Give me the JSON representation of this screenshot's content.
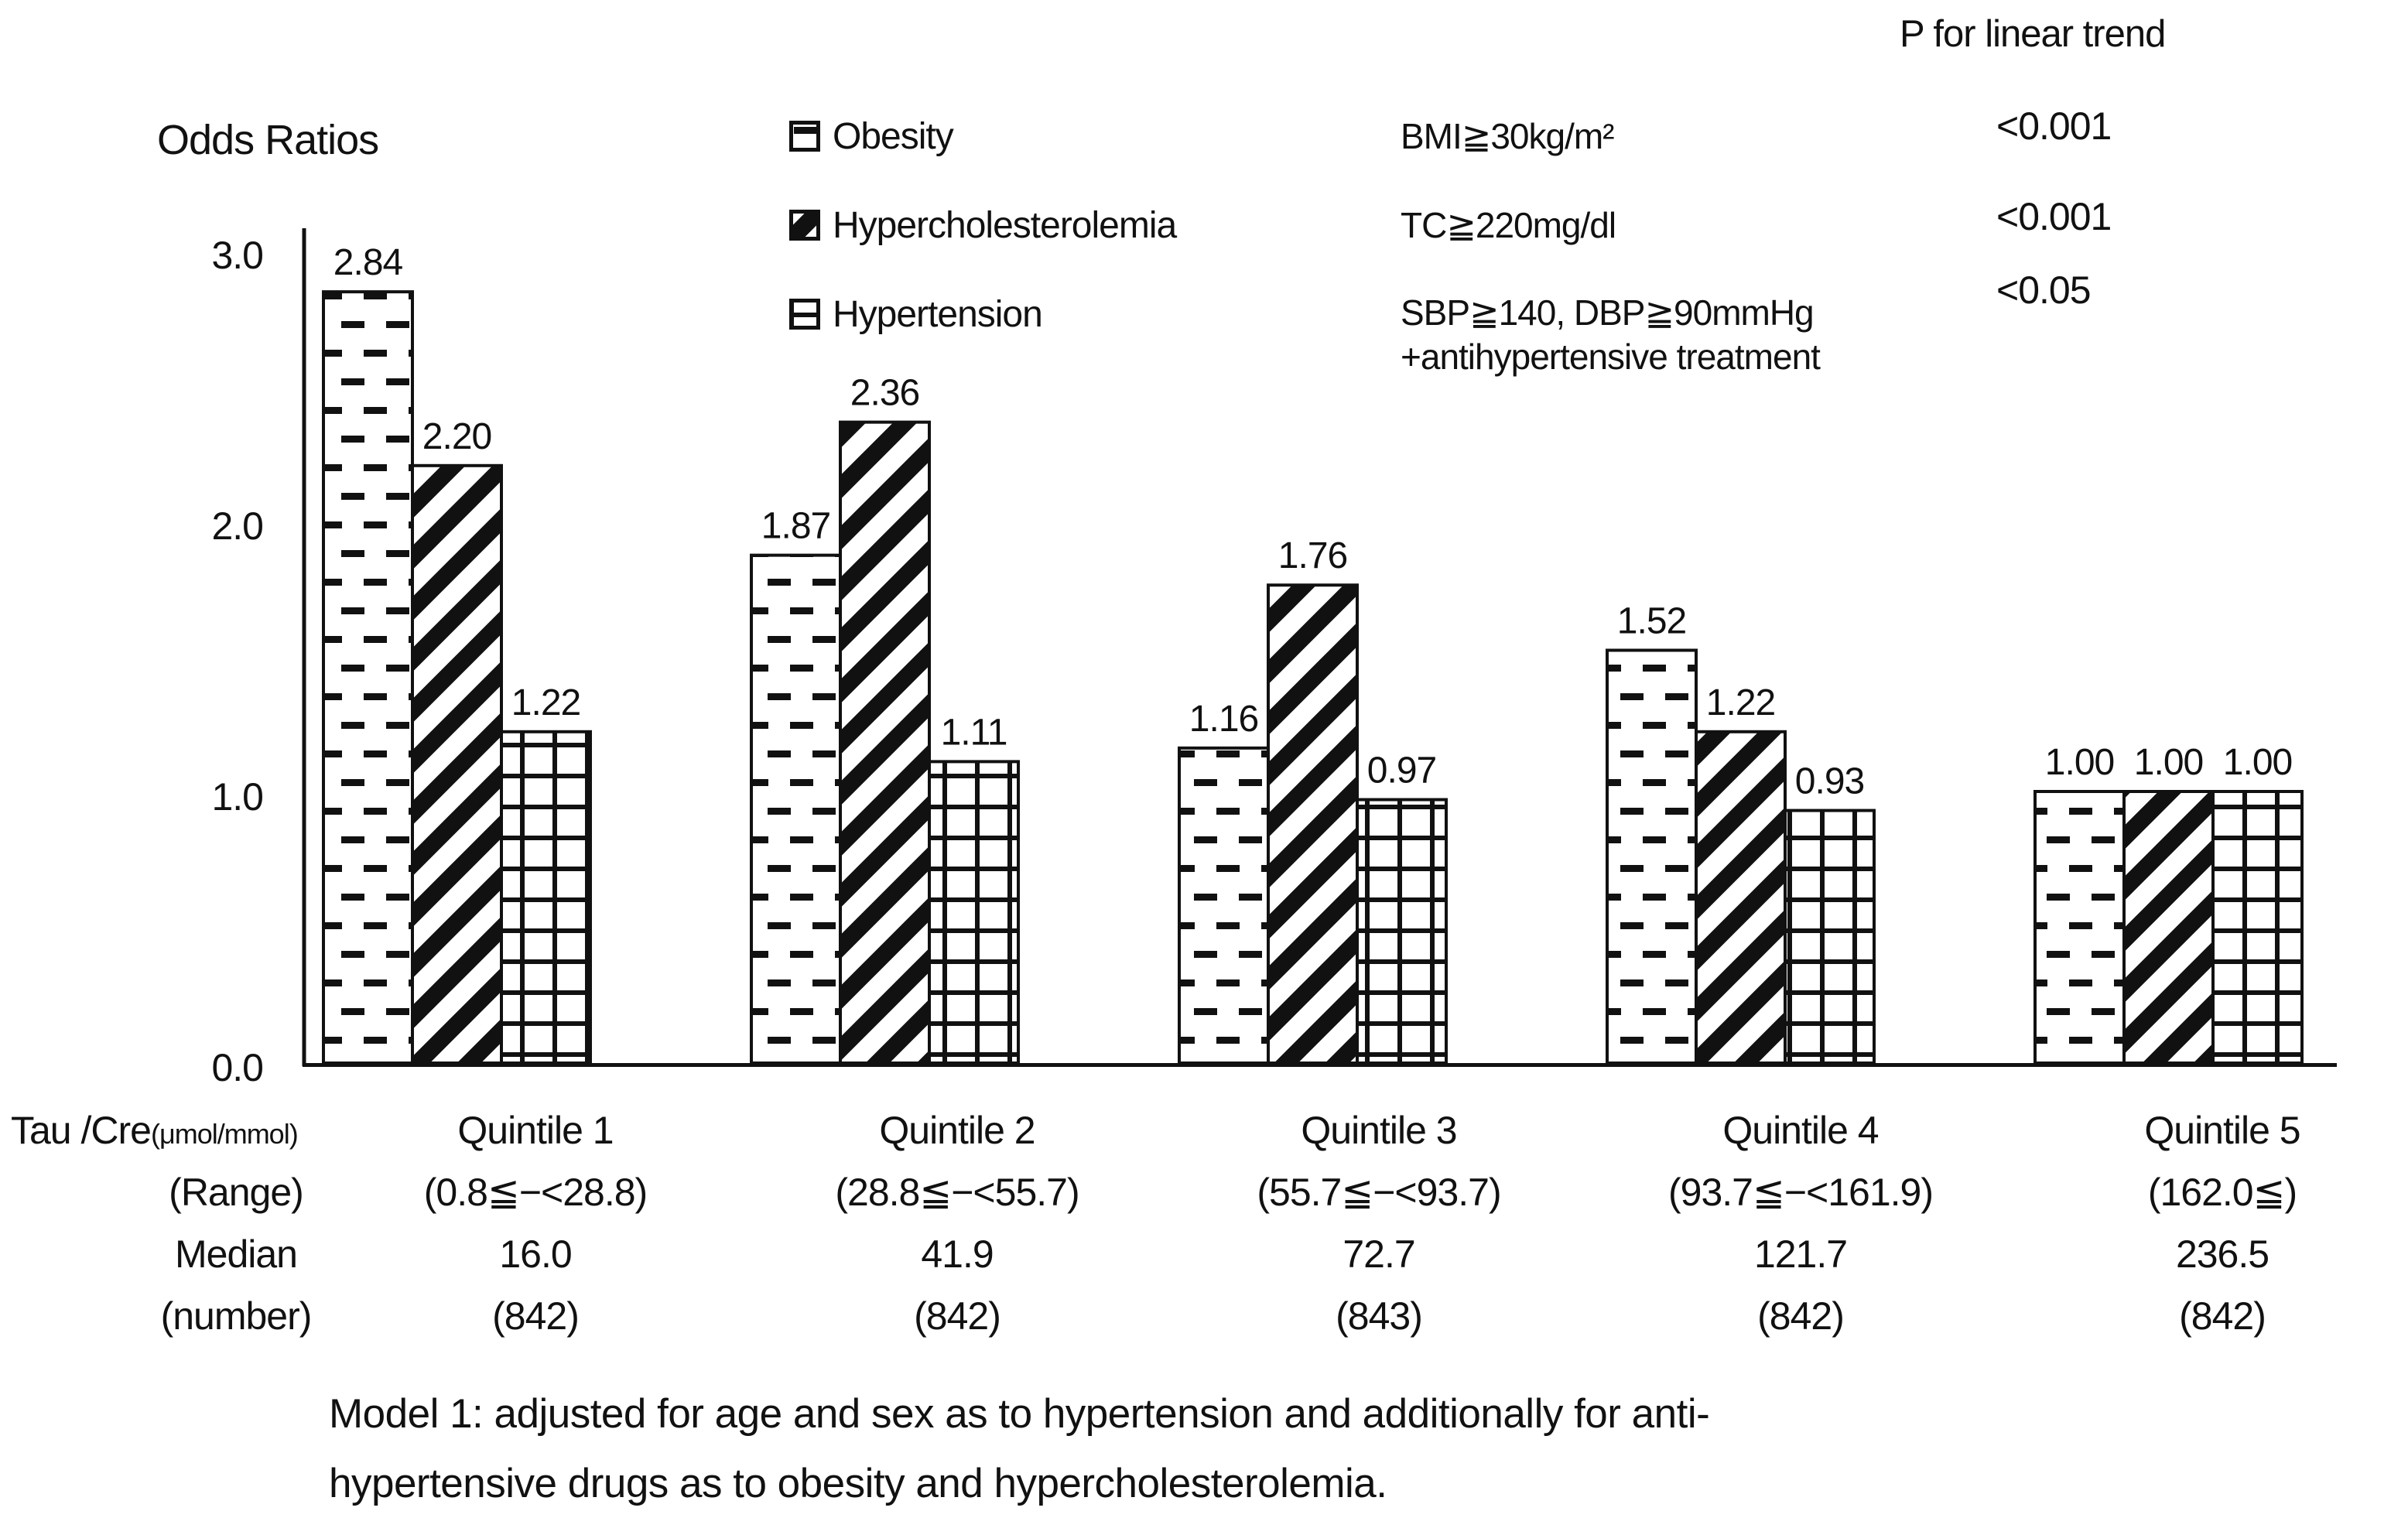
{
  "figure": {
    "y_axis_title": "Odds Ratios",
    "footnote_line1": "Model 1: adjusted for age and sex as to hypertension and additionally for anti-",
    "footnote_line2": "hypertensive drugs as to obesity and hypercholesterolemia."
  },
  "legend": {
    "p_header": "P for linear trend",
    "items": [
      {
        "label": "Obesity",
        "criterion": "BMI≧30kg/m²",
        "p_value": "<0.001",
        "pattern": "horizontal-dashes"
      },
      {
        "label": "Hypercholesterolemia",
        "criterion": "TC≧220mg/dl",
        "p_value": "<0.001",
        "pattern": "diagonal-stripes"
      },
      {
        "label": "Hypertension",
        "criterion": "SBP≧140, DBP≧90mmHg",
        "criterion_line2": "+antihypertensive treatment",
        "p_value": "<0.05",
        "pattern": "grid"
      }
    ]
  },
  "chart_data": {
    "type": "bar",
    "title": "Odds Ratios",
    "ylabel": "Odds Ratios",
    "xlabel": "Tau /Cre (μmol/mmol) quintiles",
    "ylim": [
      0,
      3.0
    ],
    "yticks": [
      "3.0",
      "2.0",
      "1.0",
      "0.0"
    ],
    "grid": false,
    "legend_position": "top",
    "categories": [
      "Quintile 1",
      "Quintile 2",
      "Quintile 3",
      "Quintile 4",
      "Quintile 5"
    ],
    "series": [
      {
        "name": "Obesity",
        "pattern": "horizontal-dashes",
        "values": [
          2.84,
          1.87,
          1.16,
          1.52,
          1.0
        ]
      },
      {
        "name": "Hypercholesterolemia",
        "pattern": "diagonal-stripes",
        "values": [
          2.2,
          2.36,
          1.76,
          1.22,
          1.0
        ]
      },
      {
        "name": "Hypertension",
        "pattern": "grid",
        "values": [
          1.22,
          1.11,
          0.97,
          0.93,
          1.0
        ]
      }
    ]
  },
  "x_table": {
    "axis_label_main": "Tau /Cre",
    "axis_label_unit": "(μmol/mmol)",
    "row_labels": {
      "range": "(Range)",
      "median": "Median",
      "number": "(number)"
    },
    "columns": [
      {
        "quintile": "Quintile 1",
        "range": "(0.8≦−<28.8)",
        "median": "16.0",
        "number": "(842)"
      },
      {
        "quintile": "Quintile 2",
        "range": "(28.8≦−<55.7)",
        "median": "41.9",
        "number": "(842)"
      },
      {
        "quintile": "Quintile 3",
        "range": "(55.7≦−<93.7)",
        "median": "72.7",
        "number": "(843)"
      },
      {
        "quintile": "Quintile 4",
        "range": "(93.7≦−<161.9)",
        "median": "121.7",
        "number": "(842)"
      },
      {
        "quintile": "Quintile 5",
        "range": "(162.0≦)",
        "median": "236.5",
        "number": "(842)"
      }
    ]
  }
}
